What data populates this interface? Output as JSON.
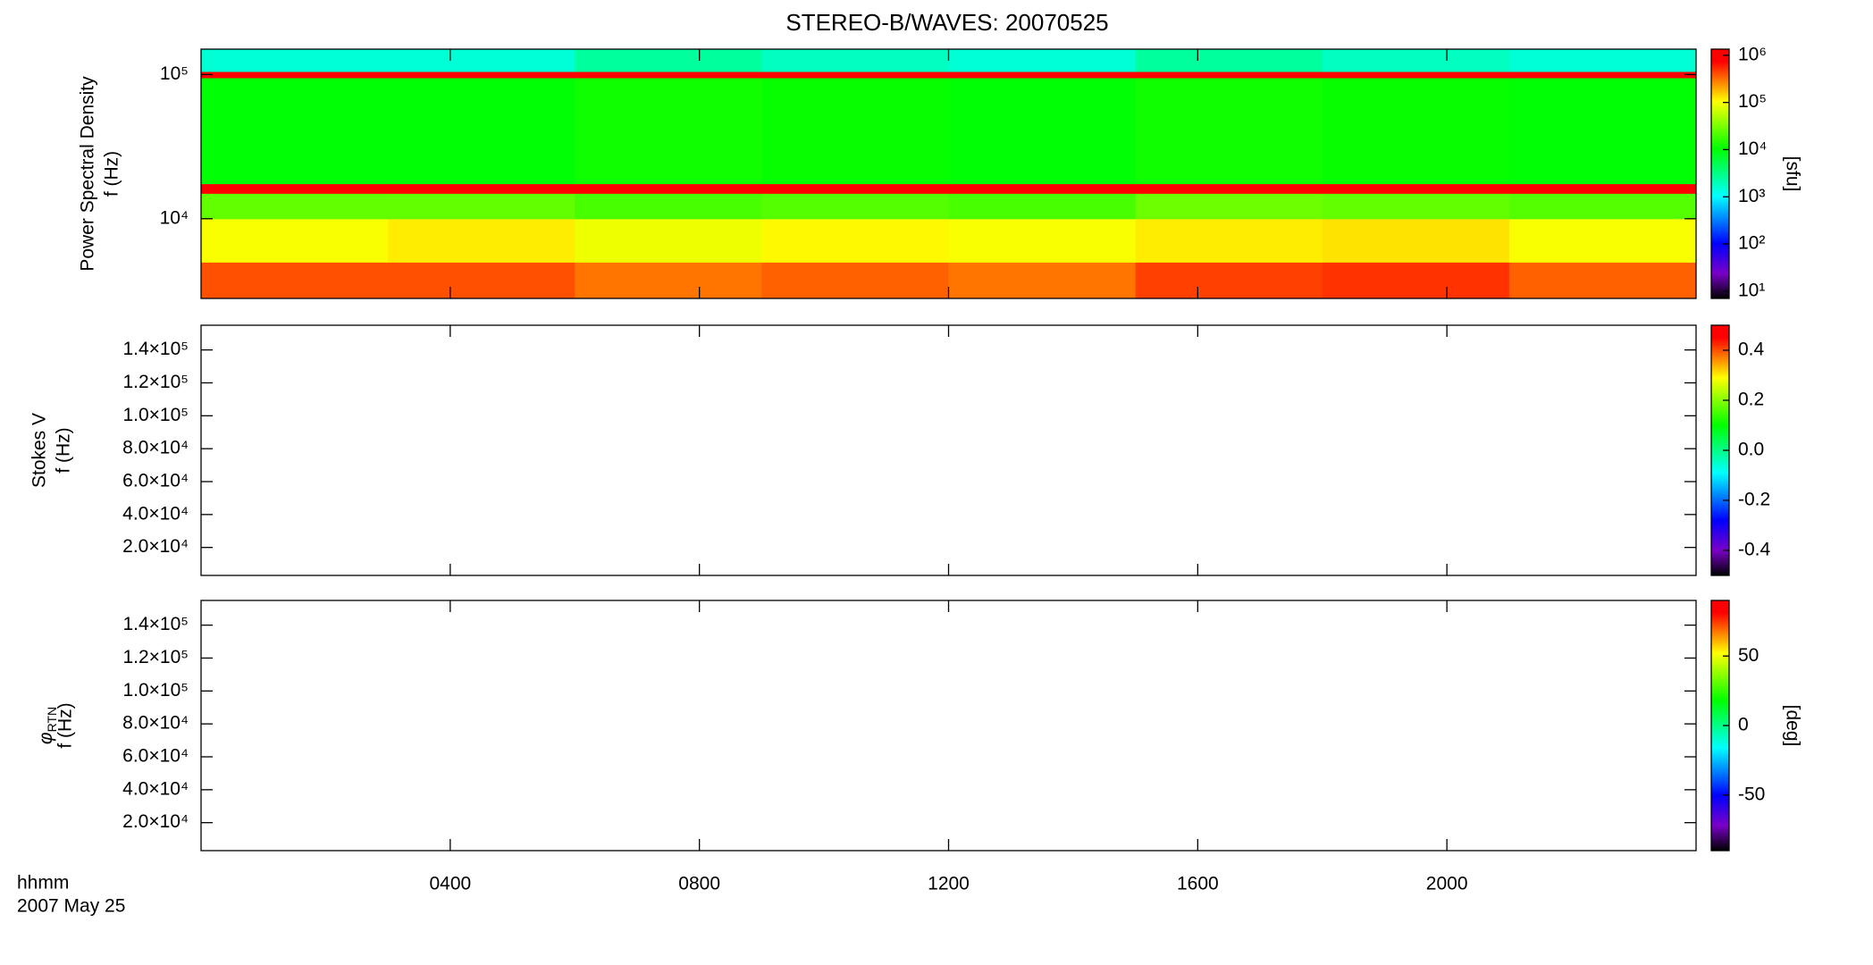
{
  "colormap": [
    {
      "color": "#000000",
      "at": 0
    },
    {
      "color": "#7a00c8",
      "at": 0.1
    },
    {
      "color": "#0000ff",
      "at": 0.22
    },
    {
      "color": "#00ffff",
      "at": 0.41
    },
    {
      "color": "#00ff00",
      "at": 0.6
    },
    {
      "color": "#ffff00",
      "at": 0.79
    },
    {
      "color": "#ff0000",
      "at": 0.95
    },
    {
      "color": "#ff0000",
      "at": 1
    }
  ],
  "chart_data": [
    {
      "type": "heatmap",
      "title": "STEREO-B/WAVES: 20070525",
      "ylabel": [
        "Power Spectral Density",
        "f (Hz)"
      ],
      "ylog": true,
      "ylim": [
        2800,
        150000
      ],
      "yticks": [
        {
          "value": 10000,
          "label": "10⁴"
        },
        {
          "value": 100000,
          "label": "10⁵"
        }
      ],
      "x_edges": [
        0,
        3,
        6,
        9,
        12,
        15,
        18,
        21,
        24
      ],
      "y_edges": [
        2800,
        5000,
        10000,
        15000,
        17500,
        95000,
        105000,
        150000
      ],
      "z": [
        [
          400000,
          400000,
          300000,
          350000,
          300000,
          450000,
          500000,
          350000
        ],
        [
          100000,
          120000,
          90000,
          110000,
          100000,
          120000,
          130000,
          100000
        ],
        [
          25000,
          25000,
          20000,
          22000,
          20000,
          28000,
          25000,
          22000
        ],
        [
          800000,
          800000,
          800000,
          800000,
          800000,
          800000,
          900000,
          800000
        ],
        [
          10000,
          10000,
          12000,
          11000,
          10000,
          12000,
          11000,
          10000
        ],
        [
          800000,
          800000,
          800000,
          800000,
          800000,
          800000,
          800000,
          800000
        ],
        [
          1500,
          1500,
          2500,
          1800,
          1500,
          2500,
          1800,
          1500
        ]
      ],
      "colorbar": {
        "log": true,
        "clim": [
          7,
          1350000
        ],
        "label": "[sfu]",
        "ticks": [
          {
            "value": 10,
            "label": "10¹"
          },
          {
            "value": 100,
            "label": "10²"
          },
          {
            "value": 1000,
            "label": "10³"
          },
          {
            "value": 10000,
            "label": "10⁴"
          },
          {
            "value": 100000,
            "label": "10⁵"
          },
          {
            "value": 1000000,
            "label": "10⁶"
          }
        ]
      }
    },
    {
      "type": "heatmap",
      "ylabel": [
        "Stokes V",
        "f (Hz)"
      ],
      "ylim": [
        3000,
        155000
      ],
      "yticks": [
        {
          "value": 20000,
          "label": "2.0×10⁴"
        },
        {
          "value": 40000,
          "label": "4.0×10⁴"
        },
        {
          "value": 60000,
          "label": "6.0×10⁴"
        },
        {
          "value": 80000,
          "label": "8.0×10⁴"
        },
        {
          "value": 100000,
          "label": "1.0×10⁵"
        },
        {
          "value": 120000,
          "label": "1.2×10⁵"
        },
        {
          "value": 140000,
          "label": "1.4×10⁵"
        }
      ],
      "colorbar": {
        "clim": [
          -0.5,
          0.5
        ],
        "ticks": [
          -0.4,
          -0.2,
          {
            "value": 0,
            "label": "0.0"
          },
          0.2,
          0.4
        ]
      }
    },
    {
      "type": "heatmap",
      "ylabel_symbol": "φ",
      "ylabel_subscript": "RTN",
      "ylabel": [
        "f (Hz)"
      ],
      "ylim": [
        3000,
        155000
      ],
      "yticks": [
        {
          "value": 20000,
          "label": "2.0×10⁴"
        },
        {
          "value": 40000,
          "label": "4.0×10⁴"
        },
        {
          "value": 60000,
          "label": "6.0×10⁴"
        },
        {
          "value": 80000,
          "label": "8.0×10⁴"
        },
        {
          "value": 100000,
          "label": "1.0×10⁵"
        },
        {
          "value": 120000,
          "label": "1.2×10⁵"
        },
        {
          "value": 140000,
          "label": "1.4×10⁵"
        }
      ],
      "xlim": [
        0,
        24
      ],
      "xticks": [
        {
          "value": 4,
          "label": "0400"
        },
        {
          "value": 8,
          "label": "0800"
        },
        {
          "value": 12,
          "label": "1200"
        },
        {
          "value": 16,
          "label": "1600"
        },
        {
          "value": 20,
          "label": "2000"
        }
      ],
      "xlabel": "hhmm",
      "date": "2007 May 25",
      "colorbar": {
        "clim": [
          -90,
          90
        ],
        "label": "[deg]",
        "ticks": [
          -50,
          0,
          50
        ]
      }
    }
  ]
}
